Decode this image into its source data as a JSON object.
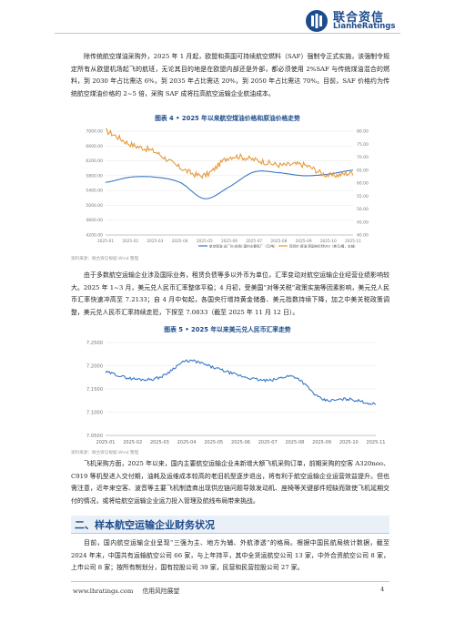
{
  "header": {
    "logo_cn": "联合资信",
    "logo_en": "LianheRatings"
  },
  "paragraphs": {
    "p1": "除传统航空煤油采购外，2025 年 1 月起，欧盟和英国可持续航空燃料（SAF）强制令正式实施，该强制令规定所有从欧盟机场起飞的航班，无论其目的地是在欧盟内部还是外部，都必须使用 2%SAF 与传统煤油混合的燃料，到 2030 年占比需达 6%，到 2035 年占比需达 20%，到 2050 年占比需达 70%。目前，SAF 价格约为传统航空煤油价格的 2~5 倍，采购 SAF 成将拉高航空运输企业航油成本。",
    "p2": "由于多数航空运输企业涉及国际业务，租赁负债等多以外币为单位，汇率变动对航空运输企业经营业绩影响较大。2025 年 1~3 月，美元兑人民币汇率整体平稳；4 月初，受美国“对等关税”政策实施等因素影响，美元兑人民币汇率快速冲高至 7.2133；自 4 月中旬起，各国央行增持黄金储备、美元指数持续下降，加之中美关税政策调整，美元兑人民币汇率持续走贬，下探至 7.0833（截至 2025 年 11 月 12 日）。",
    "p3": "飞机采购方面，2025 年以来，国内主要航空运输企业未新增大额飞机采购订单，前期采购的空客 A320neo、C919 等机型进入交付期，油耗及运维成本较高的老旧机型逐步退出，将有利于航空运输企业运营效益提升。但也需注意，近年来空客、波音等主要飞机制造商出现供应链问题导致发动机、座椅等关键部件短缺而致使飞机延期交付的情况，或将给航空运输企业运力投入管理及航线布局带来挑战。",
    "p4": "目前，国内航空运输企业呈现“三强为主、地方为辅、外航渗透”的格局。根据中国民航局统计数据，截至 2024 年末，中国共有运输航空公司 66 家，与上年持平，其中全货运航空公司 13 家，中外合资航空公司 8 家，上市公司 8 家；按所有制划分，国有控股公司 39 家，民营和民营控股公司 27 家。"
  },
  "figure4": {
    "title": "图表 4 • 2025 年以来航空煤油价格和原油价格走势",
    "source": "资料来源：联合资信根据 Wind 整理",
    "chart_data": {
      "type": "line",
      "x": [
        "2025-01",
        "2025-02",
        "2025-03",
        "2025-04",
        "2025-05",
        "2025-06",
        "2025-07",
        "2025-08",
        "2025-09",
        "2025-10",
        "2025-11"
      ],
      "y_left_ticks": [
        "7000.00",
        "6600.00",
        "6200.00",
        "5800.00",
        "5400.00",
        "5000.00",
        "4600.00",
        "4200.00"
      ],
      "y_right_ticks": [
        "80.00",
        "75.00",
        "70.00",
        "65.00",
        "60.00",
        "55.00",
        "50.00",
        "45.00",
        "40.00"
      ],
      "ylim_left": [
        4200,
        7000
      ],
      "ylim_right": [
        40,
        80
      ],
      "series": [
        {
          "name": "航空煤油:出厂价(含税):国内主要炼厂（元/吨）",
          "axis": "left",
          "color": "#3a78c8",
          "values": [
            5620,
            5760,
            5760,
            5620,
            5180,
            5500,
            5900,
            5880,
            5800,
            5840,
            5950
          ]
        },
        {
          "name": "现货价:原油:英国布伦特Dtd（美元/桶，右轴）",
          "axis": "right",
          "color": "#e59a3b",
          "values": [
            80,
            75,
            72,
            66,
            63,
            70,
            69,
            67,
            67,
            63,
            64
          ]
        }
      ],
      "legend_position": "bottom-right"
    }
  },
  "figure5": {
    "title": "图表 5 • 2025 年以来美元兑人民币汇率走势",
    "source": "资料来源：联合资信根据 Wind 整理",
    "chart_data": {
      "type": "line",
      "x": [
        "2025-01",
        "2025-02",
        "2025-03",
        "2025-04",
        "2025-05",
        "2025-06",
        "2025-07",
        "2025-08",
        "2025-09",
        "2025-10",
        "2025-11"
      ],
      "y_ticks": [
        "7.2500",
        "7.2000",
        "7.1500",
        "7.1000",
        "7.0500"
      ],
      "ylim": [
        7.05,
        7.25
      ],
      "series": [
        {
          "name": "美元兑人民币",
          "color": "#3a78c8",
          "values": [
            7.186,
            7.172,
            7.175,
            7.21,
            7.196,
            7.178,
            7.168,
            7.176,
            7.128,
            7.128,
            7.117
          ]
        }
      ]
    }
  },
  "section2": {
    "title": "二、样本航空运输企业财务状况"
  },
  "footer": {
    "site": "www.lhratings.com",
    "slogan": "信用风险展望",
    "page": "4"
  },
  "colors": {
    "brand": "#1d4c8c",
    "line_blue": "#3a78c8",
    "line_orange": "#e59a3b"
  }
}
